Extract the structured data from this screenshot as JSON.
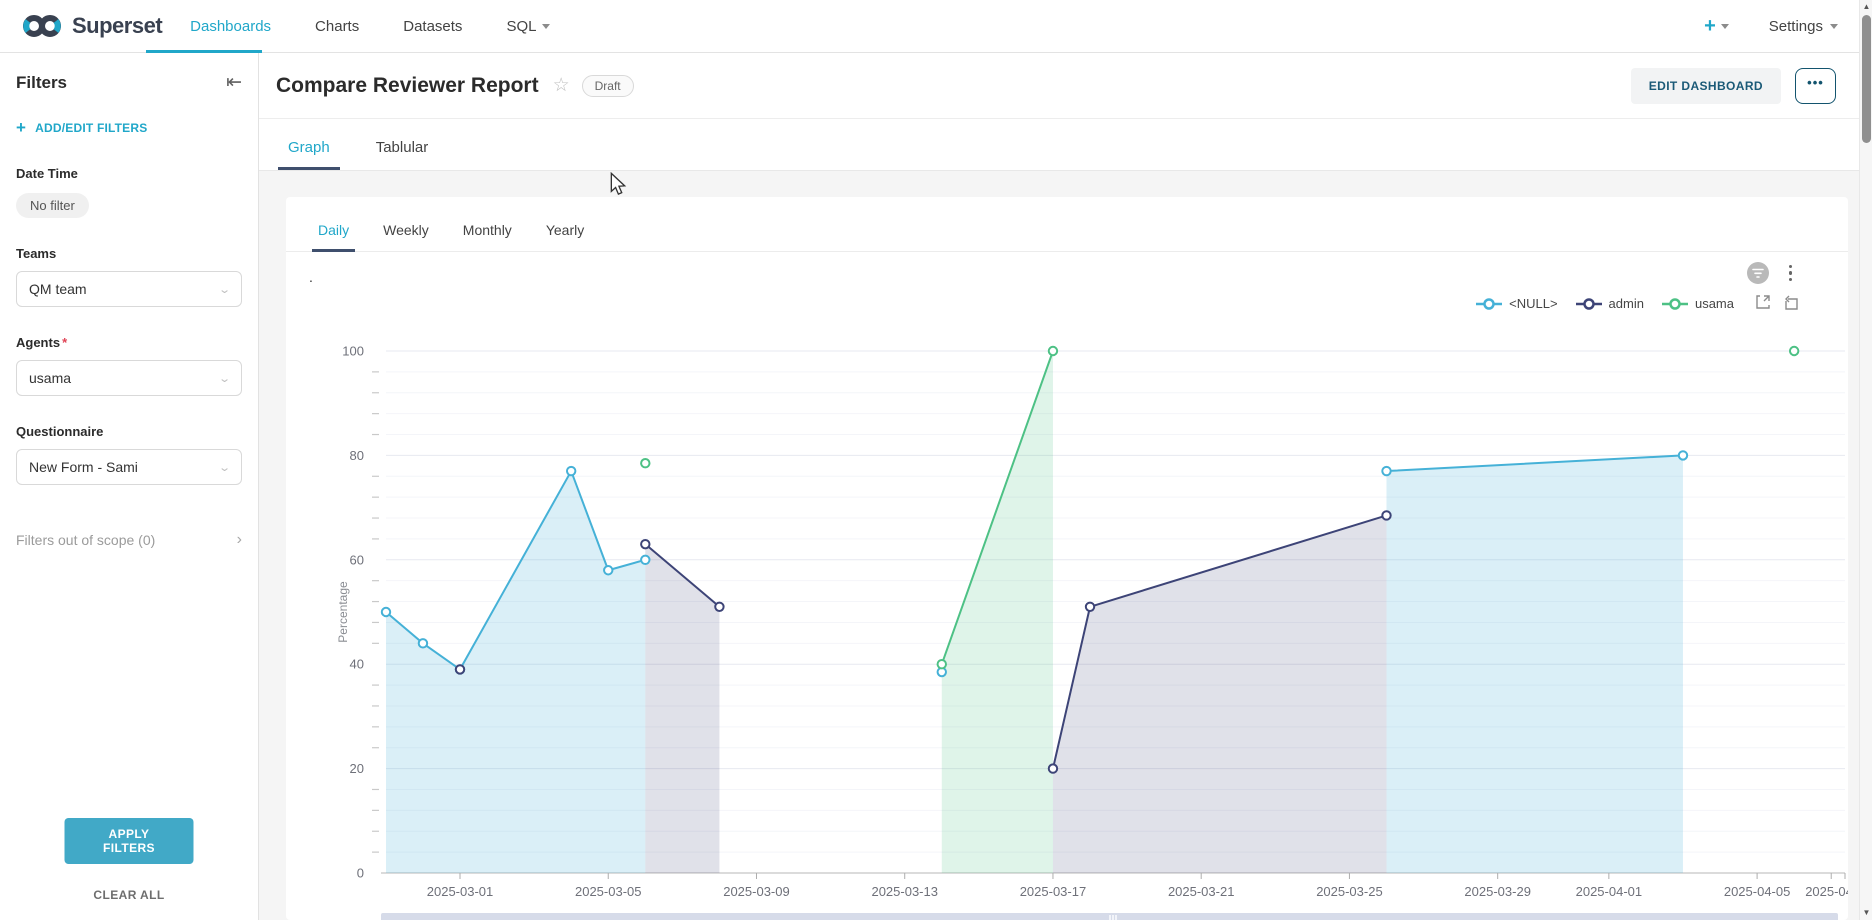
{
  "navbar": {
    "brand": "Superset",
    "items": [
      {
        "label": "Dashboards",
        "active": true
      },
      {
        "label": "Charts",
        "active": false
      },
      {
        "label": "Datasets",
        "active": false
      },
      {
        "label": "SQL",
        "active": false,
        "dropdown": true
      }
    ],
    "plus_label": "+",
    "settings_label": "Settings"
  },
  "sidebar": {
    "title": "Filters",
    "add_edit_label": "ADD/EDIT FILTERS",
    "filters": [
      {
        "label": "Date Time",
        "type": "chip",
        "value": "No filter"
      },
      {
        "label": "Teams",
        "type": "select",
        "value": "QM team",
        "required": false
      },
      {
        "label": "Agents",
        "type": "select",
        "value": "usama",
        "required": true
      },
      {
        "label": "Questionnaire",
        "type": "select",
        "value": "New Form - Sami",
        "required": false
      }
    ],
    "out_of_scope_label": "Filters out of scope (0)",
    "apply_label": "APPLY FILTERS",
    "clear_label": "CLEAR ALL"
  },
  "header": {
    "title": "Compare Reviewer Report",
    "status_badge": "Draft",
    "edit_button": "EDIT DASHBOARD",
    "more_button": "•••"
  },
  "dash_tabs": [
    {
      "label": "Graph",
      "active": true
    },
    {
      "label": "Tablular",
      "active": false
    }
  ],
  "inner_tabs": [
    {
      "label": "Daily",
      "active": true
    },
    {
      "label": "Weekly",
      "active": false
    },
    {
      "label": "Monthly",
      "active": false
    },
    {
      "label": "Yearly",
      "active": false
    }
  ],
  "chart_header_dot": ".",
  "colors": {
    "accent": "#20a7c9",
    "series_null": "#45b1d7",
    "series_admin": "#3d4477",
    "series_usama": "#4dc185"
  },
  "chart_data": {
    "type": "line",
    "title": "",
    "xlabel": "",
    "ylabel": "Percentage",
    "ylim": [
      0,
      100
    ],
    "y_major_ticks": [
      0,
      20,
      40,
      60,
      80,
      100
    ],
    "y_minor_step": 4,
    "grid": true,
    "legend_position": "top-right",
    "x_ticks": [
      {
        "date": "2025-03-01",
        "label": "2025-03-01"
      },
      {
        "date": "2025-03-05",
        "label": "2025-03-05"
      },
      {
        "date": "2025-03-09",
        "label": "2025-03-09"
      },
      {
        "date": "2025-03-13",
        "label": "2025-03-13"
      },
      {
        "date": "2025-03-17",
        "label": "2025-03-17"
      },
      {
        "date": "2025-03-21",
        "label": "2025-03-21"
      },
      {
        "date": "2025-03-25",
        "label": "2025-03-25"
      },
      {
        "date": "2025-03-29",
        "label": "2025-03-29"
      },
      {
        "date": "2025-04-01",
        "label": "2025-04-01"
      },
      {
        "date": "2025-04-05",
        "label": "2025-04-05"
      },
      {
        "date": "2025-04-07",
        "label": "2025-04-"
      }
    ],
    "series": [
      {
        "name": "<NULL>",
        "color": "#45b1d7",
        "fill": "rgba(69,177,215,0.20)",
        "points": [
          [
            "2025-02-27",
            50
          ],
          [
            "2025-02-28",
            44
          ],
          [
            "2025-03-01",
            39
          ],
          [
            "2025-03-04",
            77
          ],
          [
            "2025-03-05",
            58
          ],
          [
            "2025-03-06",
            60
          ],
          null,
          [
            "2025-03-14",
            38.5
          ],
          null,
          [
            "2025-03-26",
            77
          ],
          [
            "2025-04-03",
            80
          ]
        ]
      },
      {
        "name": "admin",
        "color": "#3d4477",
        "fill": "rgba(61,68,119,0.16)",
        "points": [
          [
            "2025-03-01",
            39
          ],
          null,
          [
            "2025-03-06",
            63
          ],
          [
            "2025-03-08",
            51
          ],
          null,
          [
            "2025-03-17",
            20
          ],
          [
            "2025-03-18",
            51
          ],
          [
            "2025-03-26",
            68.5
          ]
        ]
      },
      {
        "name": "usama",
        "color": "#4dc185",
        "fill": "rgba(77,193,133,0.18)",
        "points": [
          [
            "2025-03-06",
            78.5
          ],
          null,
          [
            "2025-03-14",
            40
          ],
          [
            "2025-03-17",
            100
          ],
          null,
          [
            "2025-04-06",
            100
          ]
        ]
      }
    ]
  }
}
